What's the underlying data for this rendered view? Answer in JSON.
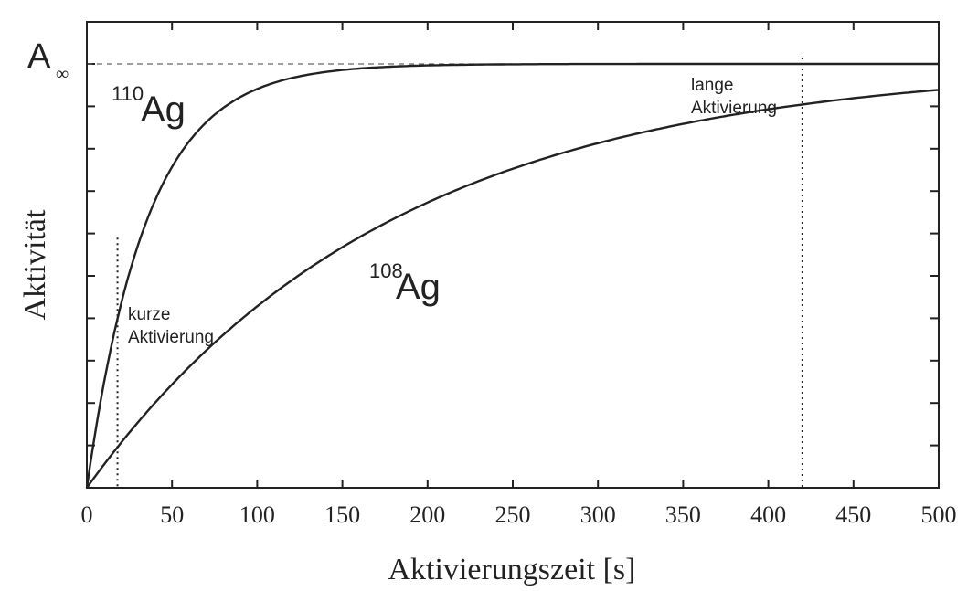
{
  "chart_data": {
    "type": "line",
    "xlabel": "Aktivierungszeit [s]",
    "ylabel": "Aktivität",
    "xlim": [
      0,
      500
    ],
    "ylim": [
      0,
      1
    ],
    "x_ticks": [
      0,
      50,
      100,
      150,
      200,
      250,
      300,
      350,
      400,
      450,
      500
    ],
    "x_tick_labels": [
      "0",
      "50",
      "100",
      "150",
      "200",
      "250",
      "300",
      "350",
      "400",
      "450",
      "500"
    ],
    "y_tick_labels_shown": false,
    "asymptote": {
      "label_main": "A",
      "label_sub": "∞",
      "value": 1.0
    },
    "series": [
      {
        "name": "110Ag",
        "label_mass": "110",
        "label_element": "Ag",
        "x": [
          0,
          10,
          20,
          30,
          40,
          50,
          60,
          70,
          80,
          90,
          100,
          120,
          140,
          160,
          180,
          200,
          250,
          300,
          400,
          500
        ],
        "y": [
          0,
          0.247,
          0.433,
          0.573,
          0.679,
          0.758,
          0.818,
          0.863,
          0.897,
          0.922,
          0.941,
          0.967,
          0.981,
          0.989,
          0.994,
          0.997,
          0.999,
          1.0,
          1.0,
          1.0
        ]
      },
      {
        "name": "108Ag",
        "label_mass": "108",
        "label_element": "Ag",
        "x": [
          0,
          25,
          50,
          75,
          100,
          125,
          150,
          175,
          200,
          250,
          300,
          350,
          400,
          450,
          500
        ],
        "y": [
          0,
          0.13,
          0.244,
          0.343,
          0.428,
          0.503,
          0.568,
          0.624,
          0.673,
          0.753,
          0.814,
          0.859,
          0.893,
          0.919,
          0.939
        ]
      }
    ],
    "annotations": [
      {
        "name": "kurze-aktivierung",
        "line1": "kurze",
        "line2": "Aktivierung",
        "x": 18,
        "y_top": 0.59
      },
      {
        "name": "lange-aktivierung",
        "line1": "lange",
        "line2": "Aktivierung",
        "x": 420,
        "y_top": 1.015
      }
    ],
    "grid": false,
    "legend": "none (series labeled inline)"
  }
}
